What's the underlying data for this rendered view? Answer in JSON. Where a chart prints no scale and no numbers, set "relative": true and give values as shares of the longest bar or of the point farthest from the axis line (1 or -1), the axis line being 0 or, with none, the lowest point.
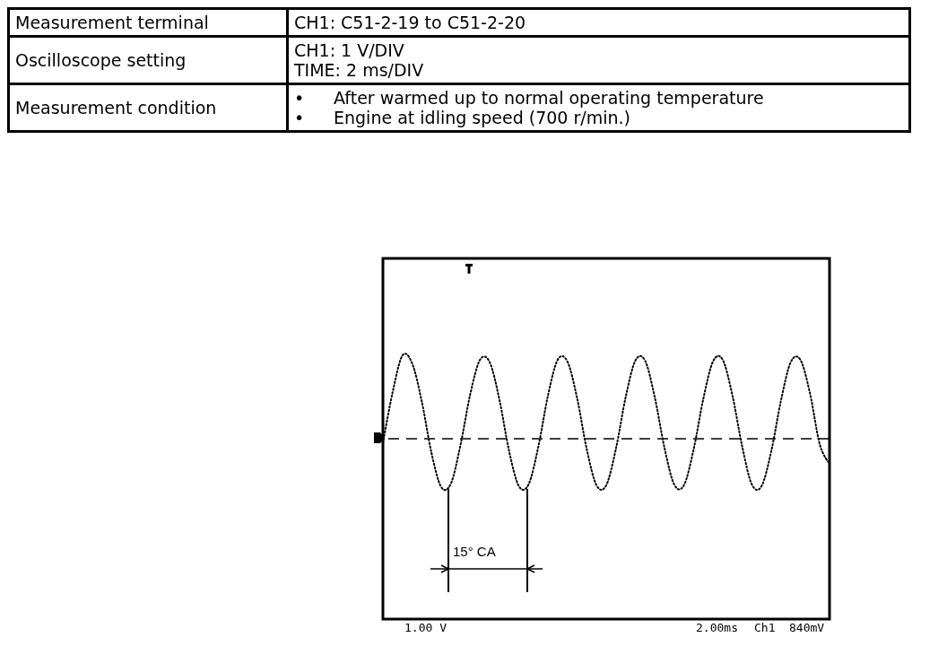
{
  "chart_data": [
    {
      "type": "other",
      "annotations": [
        "Measurement terminal",
        "CH1: C51-2-19 to C51-2-20",
        "Oscilloscope setting",
        "CH1: 1 V/DIV",
        "TIME: 2 ms/DIV",
        "Measurement condition",
        "•",
        "After warmed up to normal operating temperature",
        "•",
        "Engine at idling speed (700 r/min.)"
      ]
    },
    {
      "type": "line",
      "relative": true,
      "color": "#000000",
      "line_style": "dotted",
      "categories": [
        null,
        null,
        null,
        null,
        null,
        null,
        null,
        null,
        null,
        null,
        null,
        null,
        null,
        null,
        null,
        null,
        null,
        null,
        null,
        null,
        null,
        null,
        null,
        null,
        null,
        null,
        null,
        null,
        null,
        null,
        null,
        null,
        null,
        null,
        null,
        null,
        null,
        null,
        null,
        null,
        null,
        null,
        null,
        null,
        null,
        null,
        null
      ],
      "values": [
        -0.05,
        0.56,
        1.0,
        0.91,
        0.45,
        -0.17,
        -0.58,
        -0.54,
        -0.07,
        0.54,
        0.95,
        0.92,
        0.47,
        -0.15,
        -0.57,
        -0.55,
        -0.1,
        0.52,
        0.95,
        0.93,
        0.49,
        -0.13,
        -0.56,
        -0.56,
        -0.12,
        0.5,
        0.94,
        0.94,
        0.5,
        -0.11,
        -0.55,
        -0.56,
        -0.13,
        0.48,
        0.93,
        0.95,
        0.52,
        -0.09,
        -0.55,
        -0.57,
        -0.15,
        0.46,
        0.92,
        0.95,
        0.54,
        -0.07,
        -0.3
      ],
      "ref_lines": [
        {
          "axis": "y",
          "value": 0,
          "line_style": "dashed",
          "color": "#000000"
        }
      ],
      "annotations": [
        "15° CA",
        "1.00 V",
        "2.00ms",
        "Ch1",
        "840mV"
      ]
    }
  ]
}
